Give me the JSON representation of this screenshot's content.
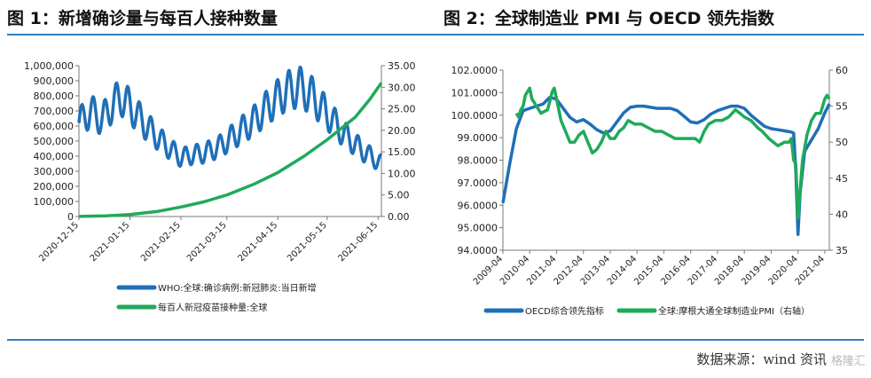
{
  "header": {
    "left_title": "图 1：新增确诊量与每百人接种数量",
    "right_title": "图 2：全球制造业 PMI 与 OECD 领先指数"
  },
  "footer": {
    "source": "数据来源：wind 资讯",
    "watermark": "格隆汇"
  },
  "colors": {
    "rule": "#2f7fc1",
    "blue": "#1f6fb8",
    "green": "#1faa5a"
  },
  "chart_data": [
    {
      "type": "line",
      "x_tick_labels": [
        "2020-12-15",
        "2021-01-15",
        "2021-02-15",
        "2021-03-15",
        "2021-04-15",
        "2021-05-15",
        "2021-06-15"
      ],
      "x_range": [
        "2020-12-15",
        "2021-06-17"
      ],
      "y_left": {
        "ticks": [
          "1,000,000",
          "900,000",
          "800,000",
          "700,000",
          "600,000",
          "500,000",
          "400,000",
          "300,000",
          "200,000",
          "100,000",
          "0"
        ],
        "lim": [
          0,
          1000000
        ]
      },
      "y_right": {
        "ticks": [
          "35.00",
          "30.00",
          "25.00",
          "20.00",
          "15.00",
          "10.00",
          "5.00",
          "0.00"
        ],
        "lim": [
          0,
          35
        ]
      },
      "grid": false,
      "legend_position": "bottom",
      "series": [
        {
          "name": "WHO:全球:确诊病例:新冠肺炎:当日新增",
          "axis": "left",
          "color": "#1f6fb8",
          "weekly_oscillation": true,
          "points": [
            [
              "2020-12-15",
              620000
            ],
            [
              "2020-12-22",
              700000
            ],
            [
              "2020-12-29",
              640000
            ],
            [
              "2021-01-05",
              750000
            ],
            [
              "2021-01-10",
              790000
            ],
            [
              "2021-01-18",
              690000
            ],
            [
              "2021-01-25",
              600000
            ],
            [
              "2021-02-05",
              480000
            ],
            [
              "2021-02-15",
              390000
            ],
            [
              "2021-02-22",
              410000
            ],
            [
              "2021-03-01",
              420000
            ],
            [
              "2021-03-10",
              460000
            ],
            [
              "2021-03-20",
              540000
            ],
            [
              "2021-04-01",
              640000
            ],
            [
              "2021-04-10",
              740000
            ],
            [
              "2021-04-20",
              830000
            ],
            [
              "2021-04-28",
              860000
            ],
            [
              "2021-05-05",
              810000
            ],
            [
              "2021-05-15",
              680000
            ],
            [
              "2021-05-25",
              550000
            ],
            [
              "2021-06-05",
              440000
            ],
            [
              "2021-06-17",
              350000
            ]
          ]
        },
        {
          "name": "每百人新冠疫苗接种量:全球",
          "axis": "right",
          "color": "#1faa5a",
          "points": [
            [
              "2020-12-15",
              0.02
            ],
            [
              "2020-12-31",
              0.15
            ],
            [
              "2021-01-15",
              0.45
            ],
            [
              "2021-02-01",
              1.2
            ],
            [
              "2021-02-15",
              2.2
            ],
            [
              "2021-03-01",
              3.4
            ],
            [
              "2021-03-15",
              5.0
            ],
            [
              "2021-04-01",
              7.6
            ],
            [
              "2021-04-15",
              10.2
            ],
            [
              "2021-05-01",
              14.0
            ],
            [
              "2021-05-15",
              17.8
            ],
            [
              "2021-06-01",
              23.0
            ],
            [
              "2021-06-10",
              27.2
            ],
            [
              "2021-06-17",
              31.0
            ]
          ]
        }
      ]
    },
    {
      "type": "line",
      "x_tick_labels": [
        "2009-04",
        "2010-04",
        "2011-04",
        "2012-04",
        "2013-04",
        "2014-04",
        "2015-04",
        "2016-04",
        "2017-04",
        "2018-04",
        "2019-04",
        "2020-04",
        "2021-04"
      ],
      "x_range": [
        "2009-04",
        "2021-06"
      ],
      "y_left": {
        "ticks": [
          "102.0000",
          "101.0000",
          "100.0000",
          "99.0000",
          "98.0000",
          "97.0000",
          "96.0000",
          "95.0000",
          "94.0000"
        ],
        "lim": [
          94,
          102
        ]
      },
      "y_right": {
        "ticks": [
          "60",
          "55",
          "50",
          "45",
          "40",
          "35"
        ],
        "lim": [
          35,
          60
        ]
      },
      "grid": false,
      "legend_position": "bottom",
      "series": [
        {
          "name": "OECD综合领先指标",
          "axis": "left",
          "color": "#1f6fb8",
          "points": [
            [
              "2009-04",
              96.1
            ],
            [
              "2009-07",
              97.8
            ],
            [
              "2009-10",
              99.4
            ],
            [
              "2010-01",
              100.2
            ],
            [
              "2010-04",
              100.3
            ],
            [
              "2010-07",
              100.4
            ],
            [
              "2010-10",
              100.5
            ],
            [
              "2011-01",
              100.8
            ],
            [
              "2011-04",
              100.7
            ],
            [
              "2011-07",
              100.3
            ],
            [
              "2011-10",
              99.9
            ],
            [
              "2012-01",
              99.7
            ],
            [
              "2012-04",
              99.8
            ],
            [
              "2012-07",
              99.6
            ],
            [
              "2012-10",
              99.35
            ],
            [
              "2013-01",
              99.2
            ],
            [
              "2013-04",
              99.3
            ],
            [
              "2013-07",
              99.7
            ],
            [
              "2013-10",
              100.1
            ],
            [
              "2014-01",
              100.35
            ],
            [
              "2014-04",
              100.4
            ],
            [
              "2014-07",
              100.4
            ],
            [
              "2014-10",
              100.35
            ],
            [
              "2015-01",
              100.3
            ],
            [
              "2015-04",
              100.3
            ],
            [
              "2015-07",
              100.3
            ],
            [
              "2015-10",
              100.2
            ],
            [
              "2016-01",
              99.95
            ],
            [
              "2016-04",
              99.7
            ],
            [
              "2016-07",
              99.65
            ],
            [
              "2016-10",
              99.8
            ],
            [
              "2017-01",
              100.05
            ],
            [
              "2017-04",
              100.2
            ],
            [
              "2017-07",
              100.3
            ],
            [
              "2017-10",
              100.4
            ],
            [
              "2018-01",
              100.4
            ],
            [
              "2018-04",
              100.3
            ],
            [
              "2018-07",
              100.0
            ],
            [
              "2018-10",
              99.75
            ],
            [
              "2019-01",
              99.5
            ],
            [
              "2019-04",
              99.4
            ],
            [
              "2019-07",
              99.35
            ],
            [
              "2019-10",
              99.3
            ],
            [
              "2020-01",
              99.25
            ],
            [
              "2020-02",
              99.2
            ],
            [
              "2020-03",
              97.5
            ],
            [
              "2020-04",
              94.7
            ],
            [
              "2020-05",
              96.6
            ],
            [
              "2020-07",
              98.4
            ],
            [
              "2020-10",
              98.9
            ],
            [
              "2021-01",
              99.4
            ],
            [
              "2021-04",
              100.1
            ],
            [
              "2021-06",
              100.5
            ]
          ]
        },
        {
          "name": "全球:摩根大通全球制造业PMI（右轴）",
          "axis": "right",
          "color": "#1faa5a",
          "points": [
            [
              "2009-10",
              54.0
            ],
            [
              "2009-11",
              53.5
            ],
            [
              "2009-12",
              54.5
            ],
            [
              "2010-01",
              55.0
            ],
            [
              "2010-02",
              56.5
            ],
            [
              "2010-03",
              57.0
            ],
            [
              "2010-04",
              57.5
            ],
            [
              "2010-05",
              56.0
            ],
            [
              "2010-06",
              55.5
            ],
            [
              "2010-07",
              55.0
            ],
            [
              "2010-09",
              54.0
            ],
            [
              "2010-12",
              54.5
            ],
            [
              "2011-02",
              57.0
            ],
            [
              "2011-03",
              57.5
            ],
            [
              "2011-04",
              56.0
            ],
            [
              "2011-06",
              53.0
            ],
            [
              "2011-08",
              51.5
            ],
            [
              "2011-10",
              50.0
            ],
            [
              "2011-12",
              50.0
            ],
            [
              "2012-02",
              51.0
            ],
            [
              "2012-04",
              51.5
            ],
            [
              "2012-06",
              50.0
            ],
            [
              "2012-08",
              48.5
            ],
            [
              "2012-10",
              49.0
            ],
            [
              "2012-12",
              50.0
            ],
            [
              "2013-02",
              51.5
            ],
            [
              "2013-04",
              50.5
            ],
            [
              "2013-06",
              50.5
            ],
            [
              "2013-08",
              51.5
            ],
            [
              "2013-10",
              52.0
            ],
            [
              "2013-12",
              53.0
            ],
            [
              "2014-03",
              52.5
            ],
            [
              "2014-06",
              52.5
            ],
            [
              "2014-09",
              52.0
            ],
            [
              "2014-12",
              51.5
            ],
            [
              "2015-03",
              51.5
            ],
            [
              "2015-06",
              51.0
            ],
            [
              "2015-09",
              50.5
            ],
            [
              "2015-12",
              50.5
            ],
            [
              "2016-03",
              50.5
            ],
            [
              "2016-06",
              50.5
            ],
            [
              "2016-08",
              50.0
            ],
            [
              "2016-10",
              51.5
            ],
            [
              "2016-12",
              52.5
            ],
            [
              "2017-03",
              53.0
            ],
            [
              "2017-06",
              53.0
            ],
            [
              "2017-09",
              53.5
            ],
            [
              "2017-12",
              54.5
            ],
            [
              "2018-02",
              54.0
            ],
            [
              "2018-04",
              53.5
            ],
            [
              "2018-07",
              53.0
            ],
            [
              "2018-10",
              52.0
            ],
            [
              "2018-12",
              51.5
            ],
            [
              "2019-03",
              50.5
            ],
            [
              "2019-05",
              50.0
            ],
            [
              "2019-07",
              49.5
            ],
            [
              "2019-10",
              50.0
            ],
            [
              "2019-12",
              50.0
            ],
            [
              "2020-01",
              50.5
            ],
            [
              "2020-02",
              47.5
            ],
            [
              "2020-03",
              47.0
            ],
            [
              "2020-04",
              39.5
            ],
            [
              "2020-05",
              43.5
            ],
            [
              "2020-06",
              47.5
            ],
            [
              "2020-08",
              51.0
            ],
            [
              "2020-10",
              53.0
            ],
            [
              "2020-12",
              54.0
            ],
            [
              "2021-02",
              54.0
            ],
            [
              "2021-04",
              56.0
            ],
            [
              "2021-05",
              56.5
            ],
            [
              "2021-06",
              56.0
            ]
          ]
        }
      ]
    }
  ]
}
